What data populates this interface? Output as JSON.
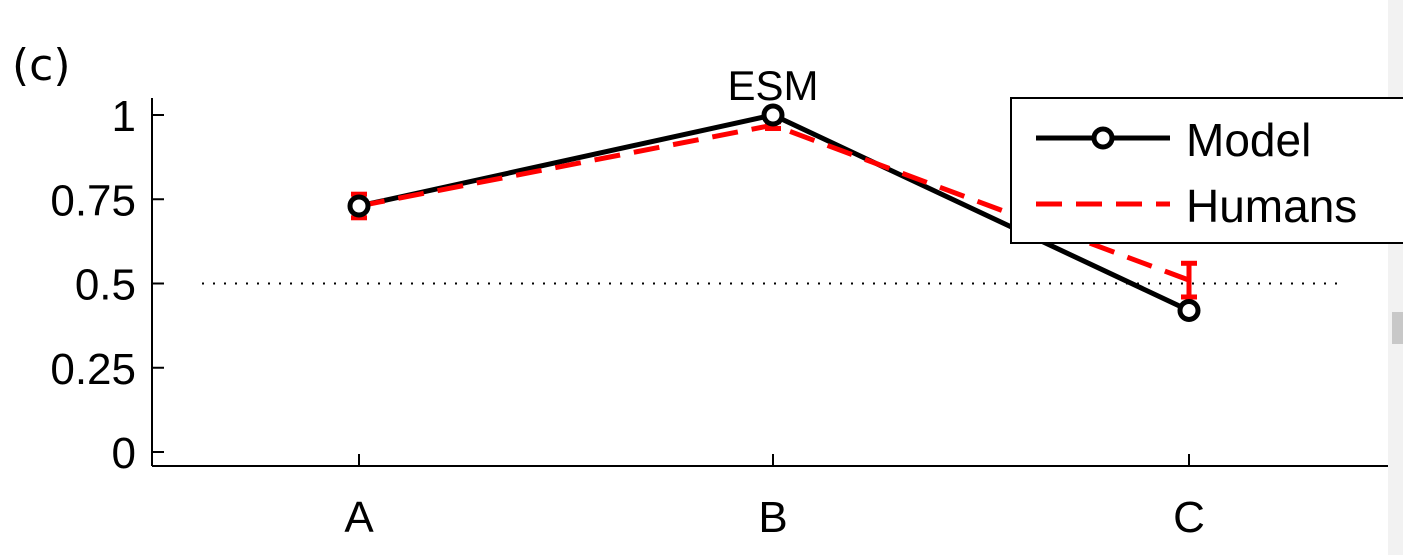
{
  "panel_label": "(c)",
  "chart_data": {
    "type": "line",
    "categories": [
      "A",
      "B",
      "C"
    ],
    "ylim": [
      0,
      1
    ],
    "yticks": [
      "0",
      "0.25",
      "0.5",
      "0.75",
      "1"
    ],
    "reference_line": {
      "y": 0.5,
      "style": "dotted"
    },
    "annotation": {
      "text": "ESM",
      "category": "B"
    },
    "legend_placement": "top-right",
    "grid": false,
    "series": [
      {
        "name": "Model",
        "values": [
          0.73,
          1.0,
          0.42
        ],
        "color": "#000000",
        "line_style": "solid",
        "marker": "circle"
      },
      {
        "name": "Humans",
        "values": [
          0.73,
          0.97,
          0.51
        ],
        "error": [
          0.035,
          0.01,
          0.05
        ],
        "color": "#ff0000",
        "line_style": "dashed",
        "marker": "none"
      }
    ]
  }
}
